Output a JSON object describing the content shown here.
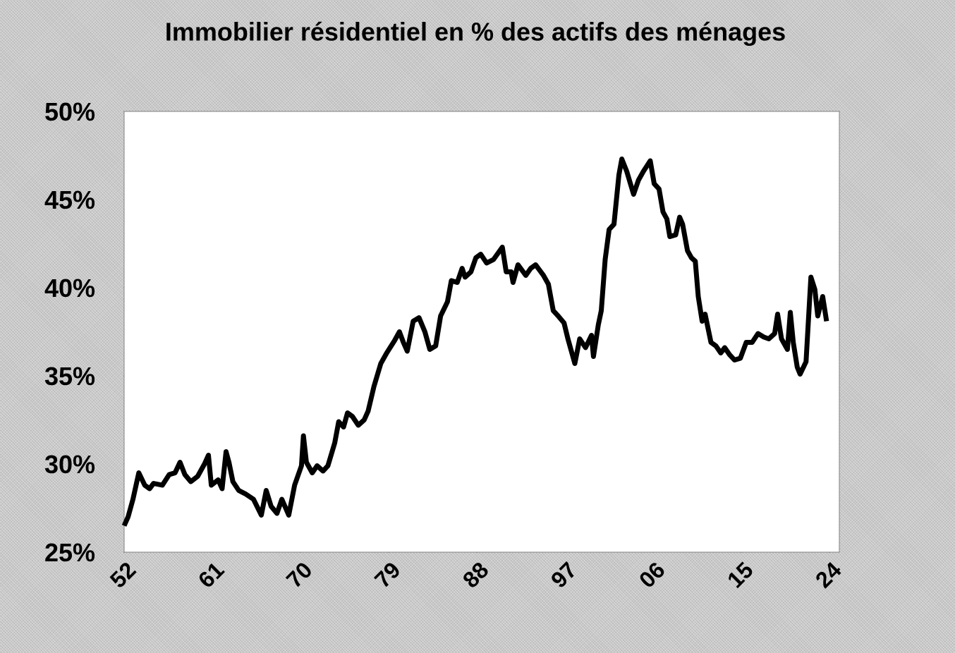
{
  "chart_data": {
    "type": "line",
    "title": "Immobilier résidentiel en % des actifs des ménages",
    "color": "#000000",
    "x": [
      1952.0,
      1952.4,
      1952.9,
      1953.5,
      1954.1,
      1954.6,
      1955.0,
      1955.9,
      1956.6,
      1957.2,
      1957.7,
      1958.2,
      1958.8,
      1959.5,
      1960.2,
      1960.6,
      1960.9,
      1961.6,
      1962.0,
      1962.4,
      1962.7,
      1963.1,
      1963.7,
      1964.4,
      1965.2,
      1966.0,
      1966.5,
      1967.0,
      1967.6,
      1968.1,
      1968.8,
      1969.4,
      1970.1,
      1970.3,
      1970.6,
      1971.2,
      1971.7,
      1972.3,
      1972.8,
      1973.5,
      1973.9,
      1974.4,
      1974.8,
      1975.3,
      1975.9,
      1976.5,
      1976.9,
      1977.5,
      1978.2,
      1978.8,
      1979.6,
      1980.1,
      1980.5,
      1980.9,
      1981.5,
      1982.1,
      1982.7,
      1983.2,
      1983.8,
      1984.3,
      1985.0,
      1985.4,
      1986.0,
      1986.5,
      1986.8,
      1987.4,
      1987.9,
      1988.4,
      1989.0,
      1989.7,
      1990.6,
      1991.0,
      1991.5,
      1991.7,
      1992.2,
      1993.0,
      1993.5,
      1994.0,
      1994.8,
      1995.3,
      1995.8,
      1996.3,
      1996.9,
      1997.3,
      1997.6,
      1998.0,
      1998.5,
      1999.1,
      1999.7,
      1999.9,
      2000.4,
      2000.7,
      2001.1,
      2001.5,
      2002.0,
      2002.5,
      2002.8,
      2003.3,
      2004.0,
      2004.5,
      2005.0,
      2005.7,
      2006.1,
      2006.6,
      2007.0,
      2007.4,
      2007.7,
      2008.3,
      2008.7,
      2009.0,
      2009.5,
      2009.9,
      2010.3,
      2010.6,
      2011.0,
      2011.3,
      2011.9,
      2012.4,
      2012.9,
      2013.3,
      2013.8,
      2014.3,
      2014.9,
      2015.5,
      2016.1,
      2016.7,
      2017.3,
      2017.8,
      2018.4,
      2018.7,
      2019.1,
      2019.7,
      2020.0,
      2020.3,
      2020.7,
      2021.0,
      2021.6,
      2022.1,
      2022.5,
      2022.8,
      2023.3,
      2023.7
    ],
    "values": [
      26.5,
      27.0,
      28.0,
      29.5,
      28.8,
      28.6,
      28.9,
      28.8,
      29.4,
      29.5,
      30.1,
      29.4,
      29.0,
      29.3,
      30.0,
      30.5,
      28.8,
      29.1,
      28.6,
      30.7,
      30.1,
      29.0,
      28.5,
      28.3,
      28.0,
      27.1,
      28.5,
      27.6,
      27.2,
      28.0,
      27.1,
      28.8,
      29.9,
      31.6,
      30.1,
      29.5,
      29.9,
      29.6,
      29.9,
      31.2,
      32.4,
      32.1,
      32.9,
      32.7,
      32.2,
      32.5,
      33.0,
      34.4,
      35.7,
      36.3,
      37.0,
      37.5,
      36.9,
      36.4,
      38.1,
      38.3,
      37.5,
      36.5,
      36.7,
      38.4,
      39.2,
      40.4,
      40.3,
      41.1,
      40.6,
      40.9,
      41.7,
      41.9,
      41.4,
      41.6,
      42.3,
      40.9,
      40.9,
      40.3,
      41.3,
      40.7,
      41.1,
      41.3,
      40.7,
      40.2,
      38.7,
      38.4,
      38.0,
      37.1,
      36.5,
      35.7,
      37.1,
      36.6,
      37.3,
      36.1,
      37.9,
      38.7,
      41.6,
      43.3,
      43.6,
      46.4,
      47.3,
      46.6,
      45.3,
      46.1,
      46.6,
      47.2,
      45.9,
      45.6,
      44.3,
      43.9,
      42.9,
      43.0,
      44.0,
      43.6,
      42.1,
      41.7,
      41.5,
      39.5,
      38.1,
      38.5,
      36.9,
      36.7,
      36.3,
      36.6,
      36.2,
      35.9,
      36.0,
      36.9,
      36.9,
      37.4,
      37.2,
      37.1,
      37.4,
      38.5,
      37.1,
      36.5,
      38.6,
      36.9,
      35.5,
      35.1,
      35.8,
      40.6,
      39.9,
      38.4,
      39.5,
      38.1
    ],
    "xlim": [
      1952,
      2025
    ],
    "xticks": [
      {
        "value": 1952,
        "label": "52"
      },
      {
        "value": 1961,
        "label": "61"
      },
      {
        "value": 1970,
        "label": "70"
      },
      {
        "value": 1979,
        "label": "79"
      },
      {
        "value": 1988,
        "label": "88"
      },
      {
        "value": 1997,
        "label": "97"
      },
      {
        "value": 2006,
        "label": "06"
      },
      {
        "value": 2015,
        "label": "15"
      },
      {
        "value": 2024,
        "label": "24"
      }
    ],
    "ylim": [
      25,
      50
    ],
    "yticks": [
      {
        "value": 25,
        "label": "25%"
      },
      {
        "value": 30,
        "label": "30%"
      },
      {
        "value": 35,
        "label": "35%"
      },
      {
        "value": 40,
        "label": "40%"
      },
      {
        "value": 45,
        "label": "45%"
      },
      {
        "value": 50,
        "label": "50%"
      }
    ]
  }
}
